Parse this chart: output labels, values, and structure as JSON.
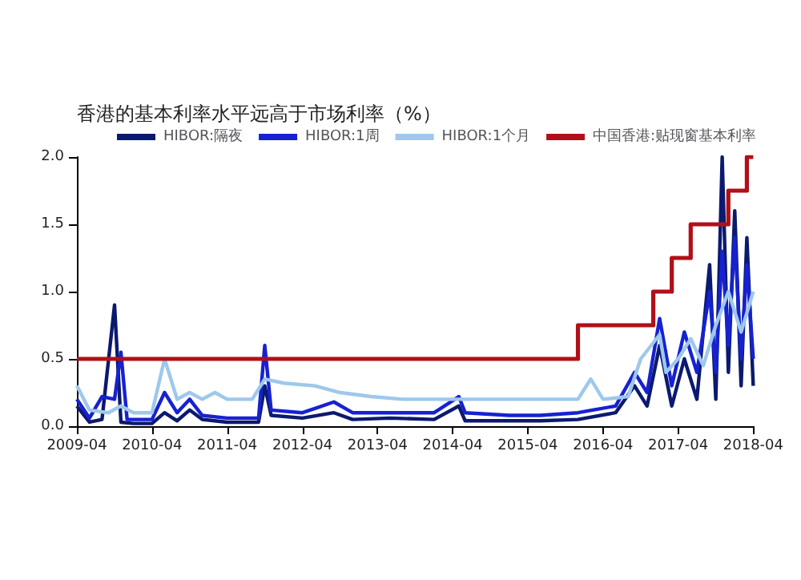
{
  "chart_data": {
    "type": "line",
    "title": "香港的基本利率水平远高于市场利率（%）",
    "xlim": [
      "2009-04",
      "2018-04"
    ],
    "xticks": [
      {
        "value": "2009-04",
        "label": "2009-04"
      },
      {
        "value": "2010-04",
        "label": "2010-04"
      },
      {
        "value": "2011-04",
        "label": "2011-04"
      },
      {
        "value": "2012-04",
        "label": "2012-04"
      },
      {
        "value": "2013-04",
        "label": "2013-04"
      },
      {
        "value": "2014-04",
        "label": "2014-04"
      },
      {
        "value": "2015-04",
        "label": "2015-04"
      },
      {
        "value": "2016-04",
        "label": "2016-04"
      },
      {
        "value": "2017-04",
        "label": "2017-04"
      },
      {
        "value": "2018-04",
        "label": "2018-04"
      }
    ],
    "ylim": [
      0,
      2
    ],
    "yticks": [
      {
        "value": 0,
        "label": "0.0"
      },
      {
        "value": 0.5,
        "label": "0.5"
      },
      {
        "value": 1,
        "label": "1.0"
      },
      {
        "value": 1.5,
        "label": "1.5"
      },
      {
        "value": 2,
        "label": "2.0"
      }
    ],
    "grid": false,
    "legend": "top",
    "marker": "none",
    "series": [
      {
        "name": "HIBOR:隔夜",
        "color": "#0b1a6e",
        "x": [
          "2009-04",
          "2009-06",
          "2009-08",
          "2009-10",
          "2009-11",
          "2010-01",
          "2010-04",
          "2010-06",
          "2010-08",
          "2010-10",
          "2010-12",
          "2011-04",
          "2011-09",
          "2011-10",
          "2011-11",
          "2012-04",
          "2012-09",
          "2012-12",
          "2013-06",
          "2014-01",
          "2014-05",
          "2014-06",
          "2015-01",
          "2015-06",
          "2015-12",
          "2016-06",
          "2016-09",
          "2016-11",
          "2017-01",
          "2017-03",
          "2017-05",
          "2017-07",
          "2017-09",
          "2017-10",
          "2017-11",
          "2017-12",
          "2018-01",
          "2018-02",
          "2018-03",
          "2018-04"
        ],
        "values": [
          0.15,
          0.03,
          0.05,
          0.9,
          0.03,
          0.02,
          0.02,
          0.1,
          0.04,
          0.12,
          0.05,
          0.03,
          0.03,
          0.3,
          0.08,
          0.06,
          0.1,
          0.05,
          0.06,
          0.05,
          0.15,
          0.04,
          0.04,
          0.04,
          0.05,
          0.1,
          0.3,
          0.15,
          0.6,
          0.15,
          0.5,
          0.2,
          1.2,
          0.2,
          2.0,
          0.4,
          1.6,
          0.3,
          1.4,
          0.3
        ]
      },
      {
        "name": "HIBOR:1周",
        "color": "#1622d0",
        "x": [
          "2009-04",
          "2009-06",
          "2009-08",
          "2009-10",
          "2009-11",
          "2009-12",
          "2010-04",
          "2010-06",
          "2010-08",
          "2010-10",
          "2010-12",
          "2011-04",
          "2011-09",
          "2011-10",
          "2011-11",
          "2012-04",
          "2012-09",
          "2012-12",
          "2013-06",
          "2014-01",
          "2014-05",
          "2014-06",
          "2015-01",
          "2015-06",
          "2015-12",
          "2016-06",
          "2016-09",
          "2016-11",
          "2017-01",
          "2017-03",
          "2017-05",
          "2017-07",
          "2017-09",
          "2017-10",
          "2017-11",
          "2017-12",
          "2018-01",
          "2018-02",
          "2018-03",
          "2018-04"
        ],
        "values": [
          0.2,
          0.06,
          0.22,
          0.2,
          0.55,
          0.05,
          0.05,
          0.25,
          0.1,
          0.2,
          0.08,
          0.06,
          0.06,
          0.6,
          0.12,
          0.1,
          0.18,
          0.1,
          0.1,
          0.1,
          0.22,
          0.1,
          0.08,
          0.08,
          0.1,
          0.15,
          0.4,
          0.25,
          0.8,
          0.3,
          0.7,
          0.4,
          1.0,
          0.4,
          1.3,
          0.6,
          1.4,
          0.5,
          1.2,
          0.5
        ]
      },
      {
        "name": "HIBOR:1个月",
        "color": "#9ec8ec",
        "x": [
          "2009-04",
          "2009-06",
          "2009-09",
          "2009-11",
          "2010-01",
          "2010-04",
          "2010-06",
          "2010-08",
          "2010-10",
          "2010-12",
          "2011-02",
          "2011-04",
          "2011-08",
          "2011-10",
          "2012-01",
          "2012-06",
          "2012-10",
          "2013-03",
          "2013-08",
          "2014-04",
          "2014-10",
          "2015-04",
          "2015-12",
          "2016-02",
          "2016-04",
          "2016-08",
          "2016-10",
          "2017-01",
          "2017-02",
          "2017-04",
          "2017-06",
          "2017-08",
          "2017-10",
          "2017-12",
          "2018-02",
          "2018-04"
        ],
        "values": [
          0.3,
          0.12,
          0.1,
          0.15,
          0.1,
          0.1,
          0.5,
          0.2,
          0.25,
          0.2,
          0.25,
          0.2,
          0.2,
          0.35,
          0.32,
          0.3,
          0.25,
          0.22,
          0.2,
          0.2,
          0.2,
          0.2,
          0.2,
          0.35,
          0.2,
          0.22,
          0.5,
          0.68,
          0.4,
          0.5,
          0.65,
          0.45,
          0.75,
          1.0,
          0.7,
          1.0
        ]
      },
      {
        "name": "中国香港:贴现窗基本利率",
        "color": "#b01018",
        "type": "step",
        "x": [
          "2009-04",
          "2015-12",
          "2016-12",
          "2017-03",
          "2017-06",
          "2017-12",
          "2018-03",
          "2018-04"
        ],
        "values": [
          0.5,
          0.75,
          1.0,
          1.25,
          1.5,
          1.75,
          2.0,
          2.0
        ]
      }
    ]
  }
}
